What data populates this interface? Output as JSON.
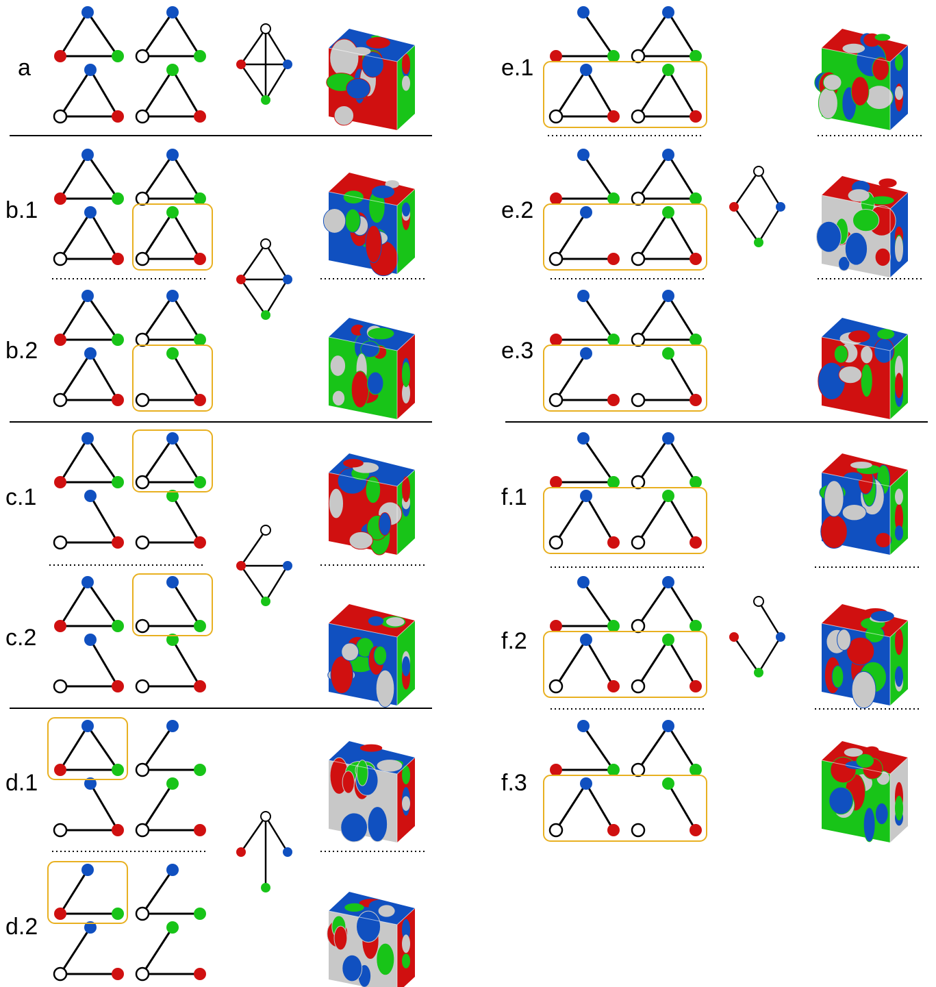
{
  "colors": {
    "red": "#d01010",
    "green": "#18c418",
    "blue": "#1050c0",
    "white": "#ffffff",
    "gray": "#c8c8c8",
    "highlight": "#e8b020",
    "edge": "#000000"
  },
  "panel_labels": {
    "a": "a",
    "b1": "b.1",
    "b2": "b.2",
    "c1": "c.1",
    "c2": "c.2",
    "d1": "d.1",
    "d2": "d.2",
    "e1": "e.1",
    "e2": "e.2",
    "e3": "e.3",
    "f1": "f.1",
    "f2": "f.2",
    "f3": "f.3"
  },
  "node_order": [
    "blue",
    "red",
    "green",
    "white"
  ],
  "panels": [
    {
      "id": "a",
      "label_key": "a",
      "subgraphs": [
        [
          "BR",
          "RG",
          "BG"
        ],
        [
          "BW",
          "WG",
          "BG"
        ],
        [
          "BW",
          "WR",
          "BR"
        ],
        [
          "GW",
          "WR",
          "GR"
        ]
      ],
      "highlight": null,
      "cube": [
        "red",
        "green",
        "blue",
        "gray"
      ]
    },
    {
      "id": "b1",
      "label_key": "b1",
      "subgraphs": [
        [
          "BR",
          "RG",
          "BG"
        ],
        [
          "BW",
          "WG",
          "BG"
        ],
        [
          "BW",
          "WR",
          "BR"
        ],
        [
          "GW",
          "WR",
          "GR"
        ]
      ],
      "highlight": 3,
      "cube": [
        "blue",
        "green",
        "red",
        "gray"
      ]
    },
    {
      "id": "b2",
      "label_key": "b2",
      "subgraphs": [
        [
          "BR",
          "RG",
          "BG"
        ],
        [
          "BW",
          "WG",
          "BG"
        ],
        [
          "BW",
          "WR",
          "BR"
        ],
        [
          "WR",
          "GR"
        ]
      ],
      "highlight": 3,
      "cube": [
        "green",
        "red",
        "blue",
        "gray"
      ]
    },
    {
      "id": "c1",
      "label_key": "c1",
      "subgraphs": [
        [
          "BR",
          "RG",
          "BG"
        ],
        [
          "BW",
          "WG",
          "BG"
        ],
        [
          "WR",
          "BR"
        ],
        [
          "WR",
          "GR"
        ]
      ],
      "highlight": 1,
      "cube": [
        "red",
        "green",
        "blue",
        "gray"
      ]
    },
    {
      "id": "c2",
      "label_key": "c2",
      "subgraphs": [
        [
          "BR",
          "RG",
          "BG"
        ],
        [
          "WG",
          "BG"
        ],
        [
          "WR",
          "BR"
        ],
        [
          "WR",
          "GR"
        ]
      ],
      "highlight": 1,
      "cube": [
        "blue",
        "green",
        "red",
        "gray"
      ]
    },
    {
      "id": "d1",
      "label_key": "d1",
      "subgraphs": [
        [
          "BR",
          "RG",
          "BG"
        ],
        [
          "BW",
          "WG"
        ],
        [
          "WR",
          "BR"
        ],
        [
          "GW",
          "WR"
        ]
      ],
      "highlight": 0,
      "cube": [
        "gray",
        "red",
        "blue",
        "green"
      ]
    },
    {
      "id": "d2",
      "label_key": "d2",
      "subgraphs": [
        [
          "BR",
          "RG"
        ],
        [
          "BW",
          "WG"
        ],
        [
          "BW",
          "WR"
        ],
        [
          "GW",
          "WR"
        ]
      ],
      "highlight": 0,
      "cube": [
        "gray",
        "red",
        "blue",
        "green"
      ]
    },
    {
      "id": "e1",
      "label_key": "e1",
      "subgraphs": [
        [
          "RG",
          "BG"
        ],
        [
          "BW",
          "WG",
          "BG"
        ],
        [
          "BW",
          "WR",
          "BR"
        ],
        [
          "GW",
          "WR",
          "GR"
        ]
      ],
      "highlight": "bottom",
      "cube": [
        "green",
        "blue",
        "red",
        "gray"
      ]
    },
    {
      "id": "e2",
      "label_key": "e2",
      "subgraphs": [
        [
          "RG",
          "BG"
        ],
        [
          "BW",
          "WG",
          "BG"
        ],
        [
          "BW",
          "WR"
        ],
        [
          "GW",
          "WR",
          "GR"
        ]
      ],
      "highlight": "bottom",
      "cube": [
        "gray",
        "blue",
        "red",
        "green"
      ]
    },
    {
      "id": "e3",
      "label_key": "e3",
      "subgraphs": [
        [
          "RG",
          "BG"
        ],
        [
          "BW",
          "WG",
          "BG"
        ],
        [
          "BW",
          "WR"
        ],
        [
          "WR",
          "GR"
        ]
      ],
      "highlight": "bottom",
      "cube": [
        "red",
        "green",
        "blue",
        "gray"
      ]
    },
    {
      "id": "f1",
      "label_key": "f1",
      "subgraphs": [
        [
          "RG",
          "BG"
        ],
        [
          "BW",
          "BG"
        ],
        [
          "BW",
          "BR"
        ],
        [
          "GW",
          "GR"
        ]
      ],
      "highlight": "bottom",
      "cube": [
        "blue",
        "green",
        "red",
        "gray"
      ]
    },
    {
      "id": "f2",
      "label_key": "f2",
      "subgraphs": [
        [
          "RG",
          "BG"
        ],
        [
          "BW",
          "BG"
        ],
        [
          "BW",
          "BR"
        ],
        [
          "GW",
          "GR"
        ]
      ],
      "highlight": "bottom",
      "cube": [
        "blue",
        "green",
        "red",
        "gray"
      ]
    },
    {
      "id": "f3",
      "label_key": "f3",
      "subgraphs": [
        [
          "RG",
          "BG"
        ],
        [
          "BW",
          "BG"
        ],
        [
          "BW",
          "BR"
        ],
        [
          "GR"
        ]
      ],
      "highlight": "bottom",
      "cube": [
        "green",
        "gray",
        "red",
        "blue"
      ]
    }
  ],
  "summary_graphs": [
    {
      "id": "a",
      "edges": [
        [
          "W",
          "R"
        ],
        [
          "W",
          "B"
        ],
        [
          "W",
          "G"
        ],
        [
          "R",
          "B"
        ],
        [
          "R",
          "G"
        ],
        [
          "B",
          "G"
        ]
      ]
    },
    {
      "id": "b",
      "edges": [
        [
          "W",
          "R"
        ],
        [
          "W",
          "B"
        ],
        [
          "R",
          "B"
        ],
        [
          "R",
          "G"
        ],
        [
          "B",
          "G"
        ]
      ]
    },
    {
      "id": "c",
      "edges": [
        [
          "W",
          "R"
        ],
        [
          "R",
          "B"
        ],
        [
          "R",
          "G"
        ],
        [
          "B",
          "G"
        ]
      ]
    },
    {
      "id": "d",
      "edges": [
        [
          "W",
          "R"
        ],
        [
          "W",
          "B"
        ],
        [
          "W",
          "G"
        ]
      ]
    },
    {
      "id": "e",
      "edges": [
        [
          "W",
          "R"
        ],
        [
          "W",
          "B"
        ],
        [
          "R",
          "G"
        ],
        [
          "B",
          "G"
        ]
      ]
    },
    {
      "id": "f",
      "edges": [
        [
          "W",
          "B"
        ],
        [
          "R",
          "G"
        ],
        [
          "B",
          "G"
        ]
      ]
    }
  ]
}
